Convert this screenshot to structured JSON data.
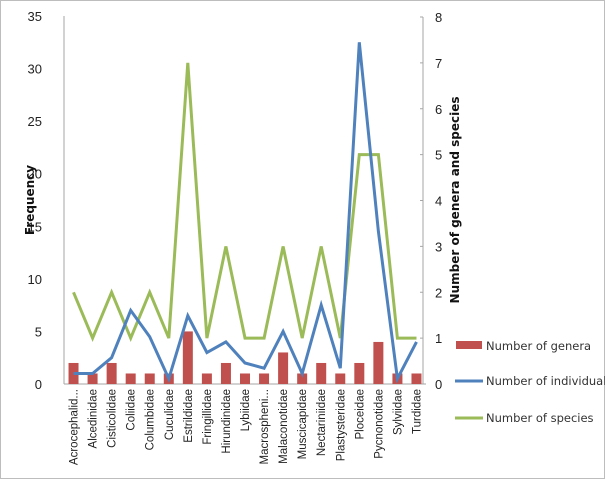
{
  "chart_data": {
    "type": "bar",
    "title": "",
    "xlabel": "",
    "ylabel": "Frequency",
    "y2label": "Number of genera and species",
    "ylim": [
      0,
      35
    ],
    "y2lim": [
      0,
      8
    ],
    "yticks": [
      "0",
      "5",
      "10",
      "15",
      "20",
      "25",
      "30",
      "35"
    ],
    "y2ticks": [
      "0",
      "1",
      "2",
      "3",
      "4",
      "5",
      "6",
      "7",
      "8"
    ],
    "grid": false,
    "legend_position": "bottom-right",
    "categories": [
      "Acrocephalid...",
      "Alcedinidae",
      "Cisticolidae",
      "Coliidae",
      "Columbidae",
      "Cuculidae",
      "Estrildidae",
      "Fringillidae",
      "Hirundinidae",
      "Lybiidae",
      "Macrospheni...",
      "Malaconotidae",
      "Muscicapidae",
      "Nectariniidae",
      "Plastysteridae",
      "Ploceidae",
      "Pycnonotidae",
      "Sylviidae",
      "Turdidae"
    ],
    "series": [
      {
        "name": "Number of genera",
        "kind": "bar",
        "axis": "left",
        "color": "#c0504d",
        "values": [
          2,
          1,
          2,
          1,
          1,
          1,
          5,
          1,
          2,
          1,
          1,
          3,
          1,
          2,
          1,
          2,
          4,
          1,
          1
        ]
      },
      {
        "name": "Number of individuals",
        "kind": "line",
        "axis": "left",
        "color": "#4f81bd",
        "values": [
          1,
          1,
          2.5,
          7,
          4.5,
          0.5,
          6.5,
          3,
          4,
          2,
          1.5,
          5,
          1,
          7.5,
          1.5,
          32.5,
          14.5,
          0.5,
          4
        ]
      },
      {
        "name": "Number of species",
        "kind": "line",
        "axis": "right",
        "color": "#9bbb59",
        "values": [
          2,
          1,
          2,
          1,
          2,
          1,
          7,
          1,
          3,
          1,
          1,
          3,
          1,
          3,
          1,
          5,
          5,
          1,
          1
        ]
      }
    ]
  }
}
